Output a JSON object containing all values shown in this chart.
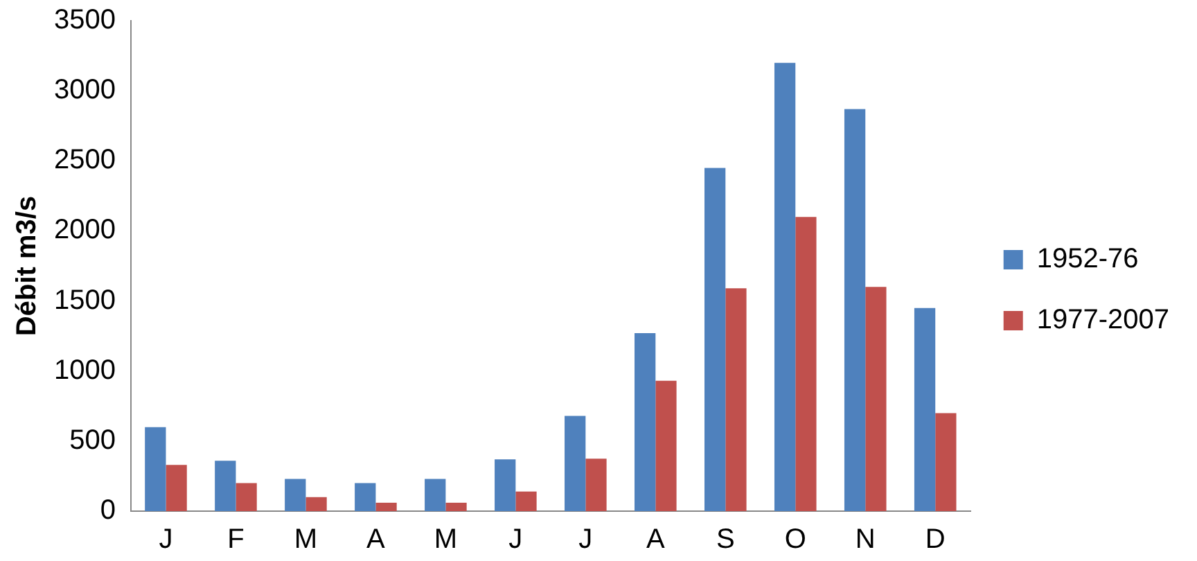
{
  "chart_data": {
    "type": "bar",
    "ylabel": "Débit m3/s",
    "categories": [
      "J",
      "F",
      "M",
      "A",
      "M",
      "J",
      "J",
      "A",
      "S",
      "O",
      "N",
      "D"
    ],
    "series": [
      {
        "name": "1952-76",
        "color": "#4f81bd",
        "values": [
          600,
          360,
          230,
          200,
          230,
          370,
          680,
          1270,
          2450,
          3200,
          2870,
          1450
        ]
      },
      {
        "name": "1977-2007",
        "color": "#c0504d",
        "values": [
          330,
          200,
          100,
          60,
          60,
          140,
          375,
          930,
          1590,
          2100,
          1600,
          700
        ]
      }
    ],
    "ylim": [
      0,
      3500
    ],
    "yticks": [
      0,
      500,
      1000,
      1500,
      2000,
      2500,
      3000,
      3500
    ],
    "grid": false,
    "legend": "right"
  }
}
